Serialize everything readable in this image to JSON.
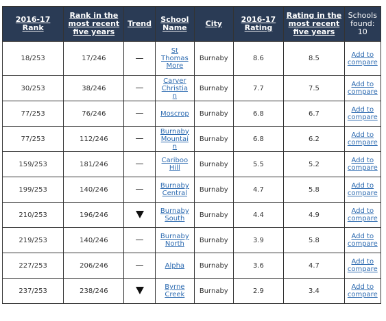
{
  "headers": {
    "rank": "2016-17 Rank",
    "rank5": "Rank in the most recent five years",
    "trend": "Trend",
    "school": "School Name",
    "city": "City",
    "rating": "2016-17 Rating",
    "rating5": "Rating in the most recent five years",
    "found": "Schools found: 10"
  },
  "compare_label": "Add to compare",
  "rows": [
    {
      "rank": "18/253",
      "rank5": "17/246",
      "trend": "flat",
      "trend_icon": "dash-icon",
      "school": "St Thomas More",
      "city": "Burnaby",
      "rating": "8.6",
      "rating5": "8.5"
    },
    {
      "rank": "30/253",
      "rank5": "38/246",
      "trend": "flat",
      "trend_icon": "dash-icon",
      "school": "Carver Christian",
      "city": "Burnaby",
      "rating": "7.7",
      "rating5": "7.5"
    },
    {
      "rank": "77/253",
      "rank5": "76/246",
      "trend": "flat",
      "trend_icon": "dash-icon",
      "school": "Moscrop",
      "city": "Burnaby",
      "rating": "6.8",
      "rating5": "6.7"
    },
    {
      "rank": "77/253",
      "rank5": "112/246",
      "trend": "flat",
      "trend_icon": "dash-icon",
      "school": "Burnaby Mountain",
      "city": "Burnaby",
      "rating": "6.8",
      "rating5": "6.2"
    },
    {
      "rank": "159/253",
      "rank5": "181/246",
      "trend": "flat",
      "trend_icon": "dash-icon",
      "school": "Cariboo Hill",
      "city": "Burnaby",
      "rating": "5.5",
      "rating5": "5.2"
    },
    {
      "rank": "199/253",
      "rank5": "140/246",
      "trend": "flat",
      "trend_icon": "dash-icon",
      "school": "Burnaby Central",
      "city": "Burnaby",
      "rating": "4.7",
      "rating5": "5.8"
    },
    {
      "rank": "210/253",
      "rank5": "196/246",
      "trend": "down",
      "trend_icon": "down-triangle-icon",
      "school": "Burnaby South",
      "city": "Burnaby",
      "rating": "4.4",
      "rating5": "4.9"
    },
    {
      "rank": "219/253",
      "rank5": "140/246",
      "trend": "flat",
      "trend_icon": "dash-icon",
      "school": "Burnaby North",
      "city": "Burnaby",
      "rating": "3.9",
      "rating5": "5.8"
    },
    {
      "rank": "227/253",
      "rank5": "206/246",
      "trend": "flat",
      "trend_icon": "dash-icon",
      "school": "Alpha",
      "city": "Burnaby",
      "rating": "3.6",
      "rating5": "4.7"
    },
    {
      "rank": "237/253",
      "rank5": "238/246",
      "trend": "down",
      "trend_icon": "down-triangle-icon",
      "school": "Byrne Creek",
      "city": "Burnaby",
      "rating": "2.9",
      "rating5": "3.4"
    }
  ]
}
